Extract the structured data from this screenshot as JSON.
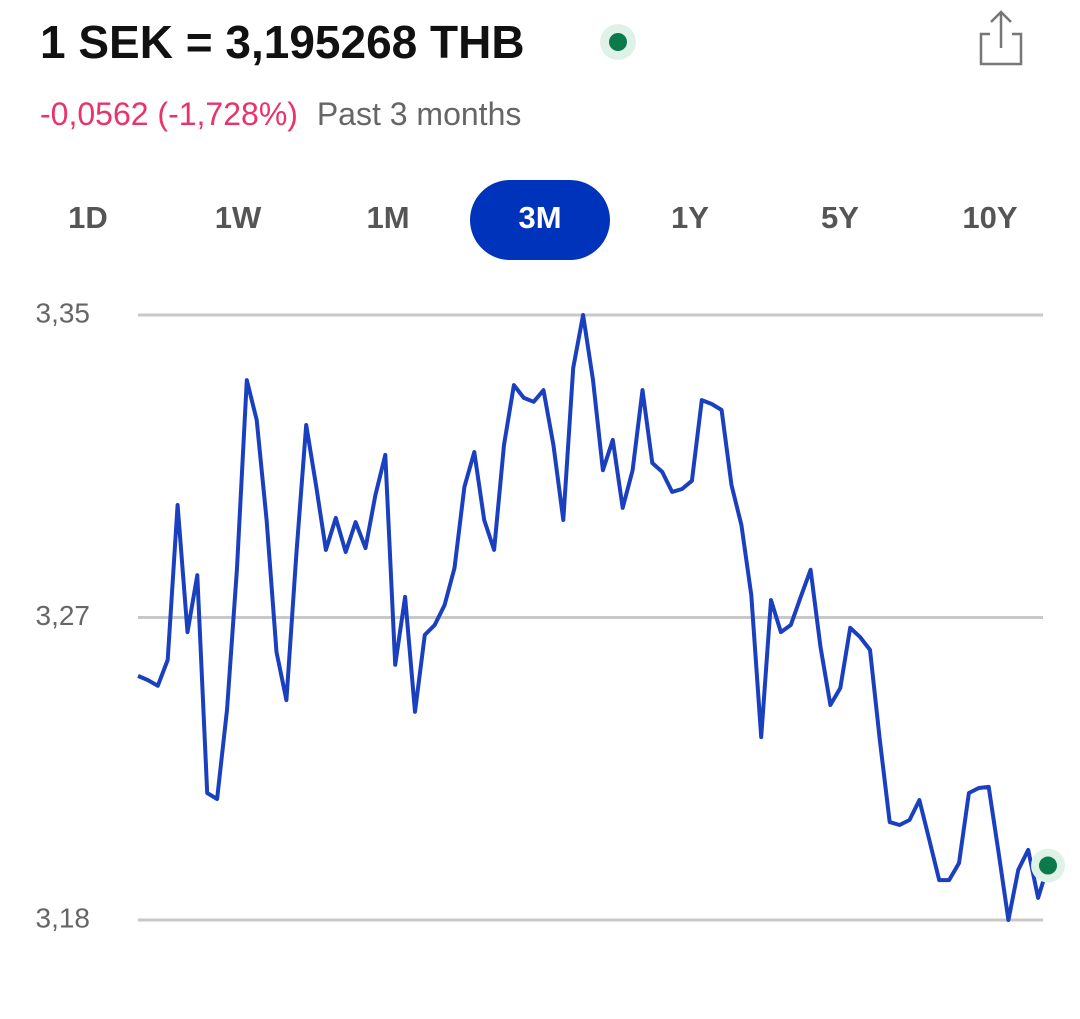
{
  "header": {
    "title": "1 SEK = 3,195268 THB",
    "change": "-0,0562 (-1,728%)",
    "period": "Past 3 months"
  },
  "tabs": {
    "options": [
      "1D",
      "1W",
      "1M",
      "3M",
      "1Y",
      "5Y",
      "10Y"
    ],
    "selected": 3
  },
  "chart_data": {
    "type": "line",
    "ylim": [
      3.18,
      3.35
    ],
    "yticks": [
      {
        "value": 3.18,
        "label": "3,18"
      },
      {
        "value": 3.265,
        "label": "3,27"
      },
      {
        "value": 3.35,
        "label": "3,35"
      }
    ],
    "grid": true,
    "color": "#1a3fbf",
    "marker_color": "#0b7a4b",
    "values": [
      3.2486,
      3.2474,
      3.2458,
      3.2531,
      3.2966,
      3.2609,
      3.2769,
      3.2157,
      3.214,
      3.239,
      3.2784,
      3.3317,
      3.3205,
      3.2924,
      3.2553,
      3.2418,
      3.2826,
      3.3191,
      3.3022,
      3.284,
      3.293,
      3.2834,
      3.2918,
      3.2845,
      3.2994,
      3.3107,
      3.2517,
      3.2708,
      3.2385,
      3.2601,
      3.2629,
      3.2685,
      3.2789,
      3.3017,
      3.3115,
      3.2924,
      3.284,
      3.3135,
      3.3303,
      3.3267,
      3.3256,
      3.3289,
      3.3135,
      3.2924,
      3.3351,
      3.35,
      3.3317,
      3.3064,
      3.3149,
      3.2958,
      3.3064,
      3.3289,
      3.3084,
      3.3059,
      3.3003,
      3.3011,
      3.3034,
      3.3261,
      3.325,
      3.3233,
      3.3022,
      3.291,
      3.2713,
      3.2314,
      3.2699,
      3.2609,
      3.2629,
      3.2708,
      3.2784,
      3.2567,
      3.2404,
      3.2452,
      3.2621,
      3.2595,
      3.2559,
      3.2306,
      3.2075,
      3.2067,
      3.2081,
      3.2137,
      3.2025,
      3.1912,
      3.1912,
      3.196,
      3.2157,
      3.2171,
      3.2174,
      3.1991,
      3.18,
      3.1941,
      3.1997,
      3.1862,
      3.1953
    ]
  }
}
